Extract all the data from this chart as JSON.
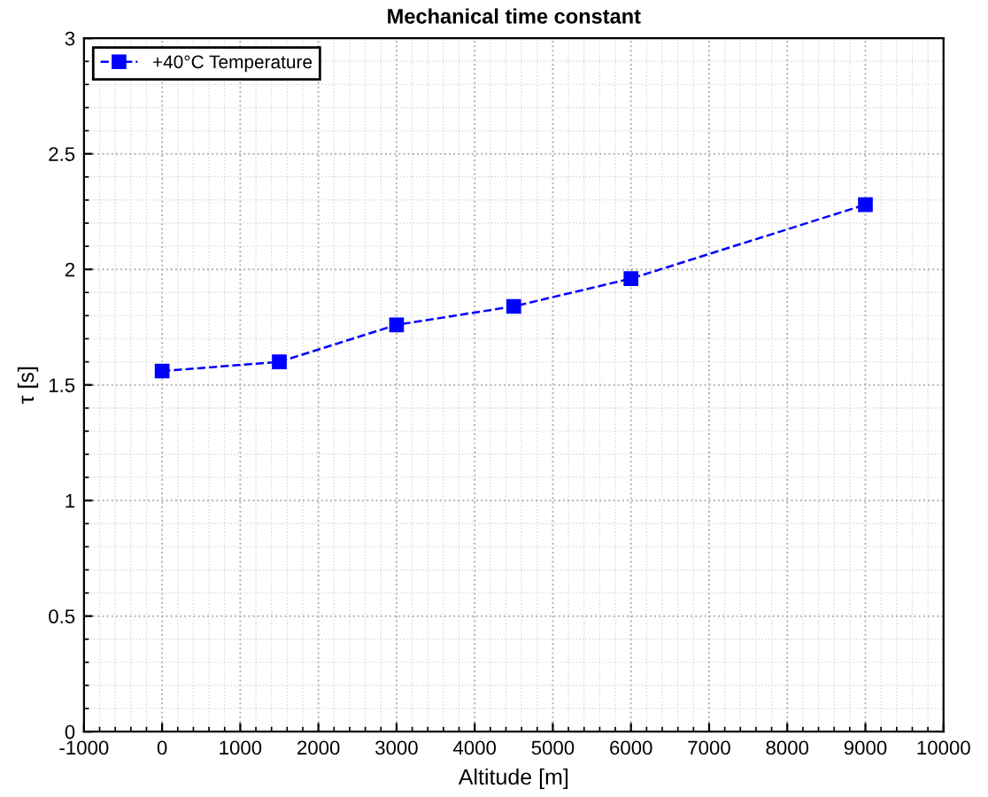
{
  "chart_data": {
    "type": "line",
    "title": "Mechanical time constant",
    "xlabel": "Altitude [m]",
    "ylabel": "τ [s]",
    "x": [
      0,
      1500,
      3000,
      4500,
      6000,
      9000
    ],
    "series": [
      {
        "name": "+40°C Temperature",
        "color": "#0000ff",
        "values": [
          1.56,
          1.6,
          1.76,
          1.84,
          1.96,
          2.28
        ]
      }
    ],
    "xlim": [
      -1000,
      10000
    ],
    "xticks": [
      -1000,
      0,
      1000,
      2000,
      3000,
      4000,
      5000,
      6000,
      7000,
      8000,
      9000,
      10000
    ],
    "ylim": [
      0,
      3
    ],
    "yticks": [
      0,
      0.5,
      1,
      1.5,
      2,
      2.5,
      3
    ],
    "grid": true,
    "legend": "top left",
    "marker": "square",
    "line_style": "dashed"
  }
}
